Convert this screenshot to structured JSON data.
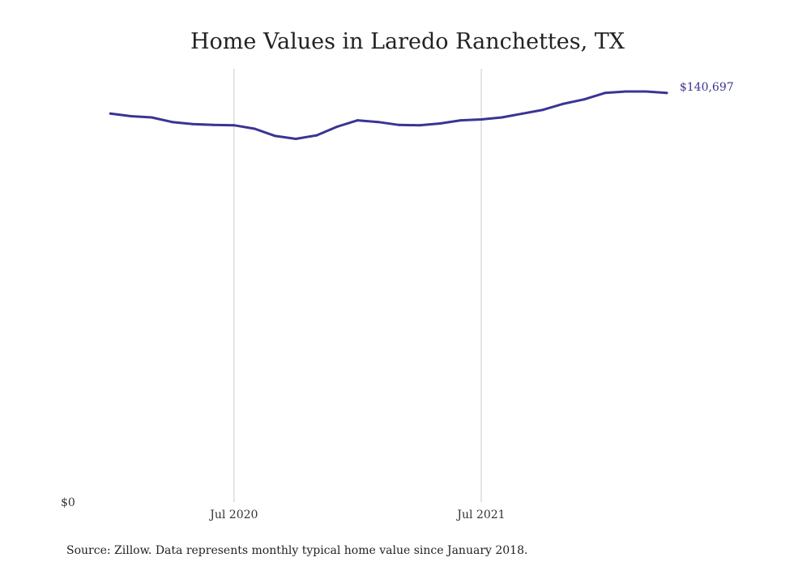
{
  "chart_data": {
    "type": "line",
    "title": "Home Values in Laredo Ranchettes, TX",
    "source": "Source: Zillow. Data represents monthly typical home value since January 2018.",
    "xlabel": "",
    "ylabel": "",
    "x_ticks": [
      {
        "label": "Jul 2020",
        "date": "2020-07"
      },
      {
        "label": "Jul 2021",
        "date": "2021-07"
      }
    ],
    "y_ticks": [
      {
        "label": "$0",
        "value": 0
      }
    ],
    "ylim": [
      0,
      149000
    ],
    "xlim": [
      "2019-10",
      "2022-09"
    ],
    "grid": "vertical",
    "series": [
      {
        "color": "#3b3494",
        "end_label": "$140,697",
        "points": [
          {
            "x": "2020-01",
            "y": 133600
          },
          {
            "x": "2020-02",
            "y": 132700
          },
          {
            "x": "2020-03",
            "y": 132300
          },
          {
            "x": "2020-04",
            "y": 130700
          },
          {
            "x": "2020-05",
            "y": 130000
          },
          {
            "x": "2020-06",
            "y": 129700
          },
          {
            "x": "2020-07",
            "y": 129600
          },
          {
            "x": "2020-08",
            "y": 128400
          },
          {
            "x": "2020-09",
            "y": 125900
          },
          {
            "x": "2020-10",
            "y": 124900
          },
          {
            "x": "2020-11",
            "y": 126100
          },
          {
            "x": "2020-12",
            "y": 129100
          },
          {
            "x": "2021-01",
            "y": 131300
          },
          {
            "x": "2021-02",
            "y": 130700
          },
          {
            "x": "2021-03",
            "y": 129700
          },
          {
            "x": "2021-04",
            "y": 129600
          },
          {
            "x": "2021-05",
            "y": 130200
          },
          {
            "x": "2021-06",
            "y": 131300
          },
          {
            "x": "2021-07",
            "y": 131600
          },
          {
            "x": "2021-08",
            "y": 132300
          },
          {
            "x": "2021-09",
            "y": 133600
          },
          {
            "x": "2021-10",
            "y": 134900
          },
          {
            "x": "2021-11",
            "y": 137000
          },
          {
            "x": "2021-12",
            "y": 138500
          },
          {
            "x": "2022-01",
            "y": 140700
          },
          {
            "x": "2022-02",
            "y": 141200
          },
          {
            "x": "2022-03",
            "y": 141200
          },
          {
            "x": "2022-04",
            "y": 140697
          }
        ]
      }
    ]
  }
}
